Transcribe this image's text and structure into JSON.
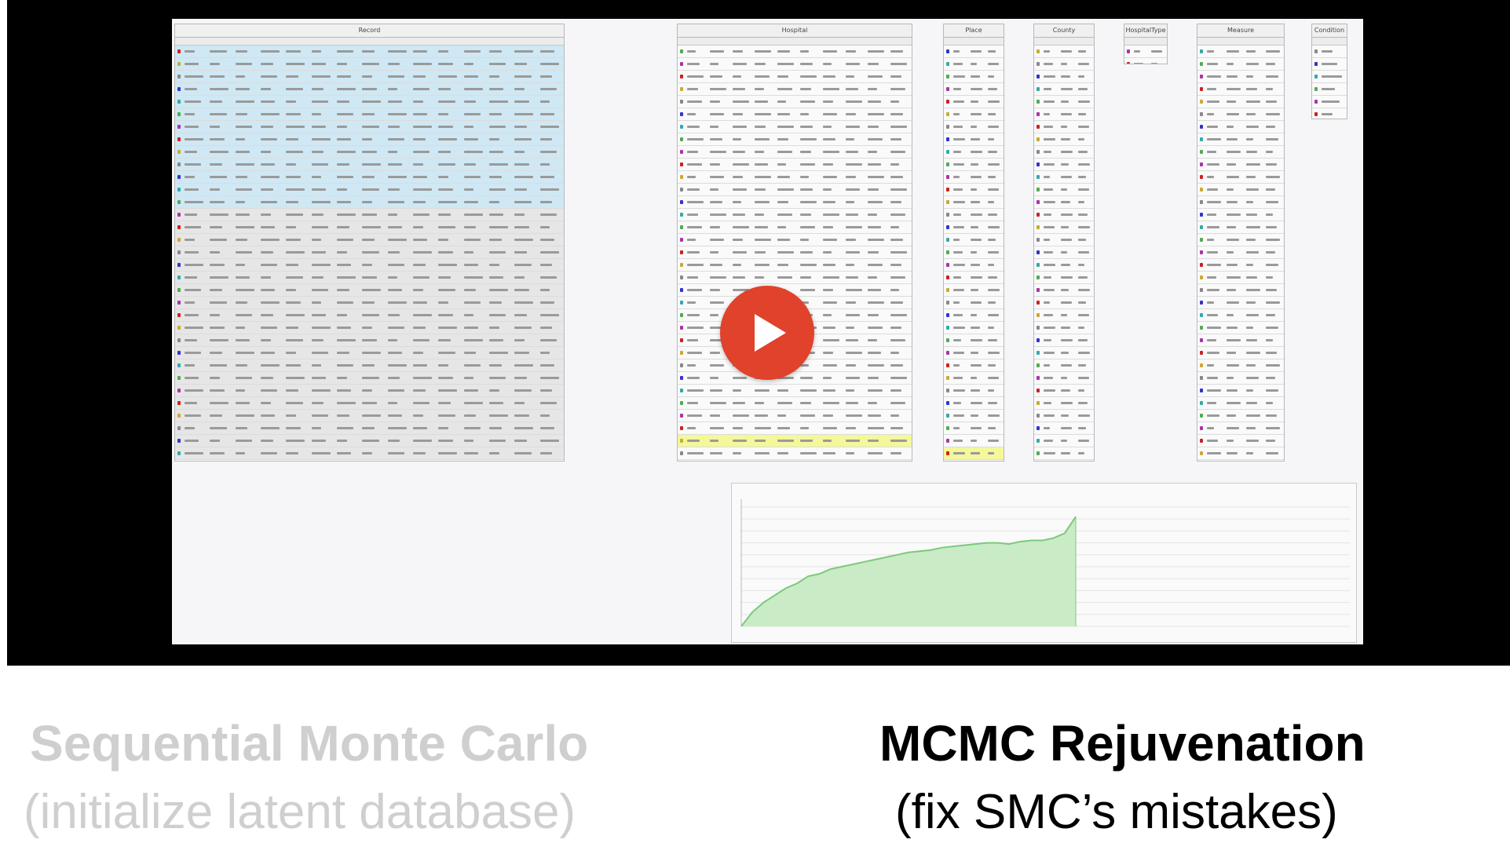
{
  "video": {
    "tables": [
      {
        "id": "record",
        "title": "Record",
        "rows": 33,
        "cols": 15
      },
      {
        "id": "hospital",
        "title": "Hospital",
        "rows": 33,
        "cols": 10
      },
      {
        "id": "place",
        "title": "Place",
        "rows": 33,
        "cols": 3
      },
      {
        "id": "county",
        "title": "County",
        "rows": 33,
        "cols": 3
      },
      {
        "id": "hospitaltype",
        "title": "HospitalType",
        "rows": 2,
        "cols": 2
      },
      {
        "id": "measure",
        "title": "Measure",
        "rows": 33,
        "cols": 4
      },
      {
        "id": "condition",
        "title": "Condition",
        "rows": 7,
        "cols": 1
      }
    ],
    "chart": {
      "type": "area",
      "x": [
        0,
        1,
        2,
        3,
        4,
        5,
        6,
        7,
        8,
        9,
        10,
        11,
        12,
        13,
        14,
        15,
        16,
        17,
        18,
        19,
        20,
        21,
        22,
        23,
        24,
        25,
        26,
        27,
        28,
        29,
        30
      ],
      "y": [
        0,
        6,
        10,
        13,
        16,
        18,
        21,
        22,
        24,
        25,
        26,
        27,
        28,
        29,
        30,
        31,
        31.5,
        32,
        33,
        33.5,
        34,
        34.5,
        35,
        35,
        34.5,
        35.5,
        36,
        36,
        37,
        39,
        46
      ],
      "series_color": "#7cc97c",
      "fill_color": "#c9ebc6"
    },
    "play_button": {
      "color": "#e0422b"
    }
  },
  "captions": {
    "smc": {
      "title": "Sequential Monte Carlo",
      "subtitle": "(initialize latent database)",
      "color": "#cfcfcf"
    },
    "mcmc": {
      "title": "MCMC Rejuvenation",
      "subtitle": "(fix SMC’s mistakes)",
      "color": "#000000"
    }
  }
}
